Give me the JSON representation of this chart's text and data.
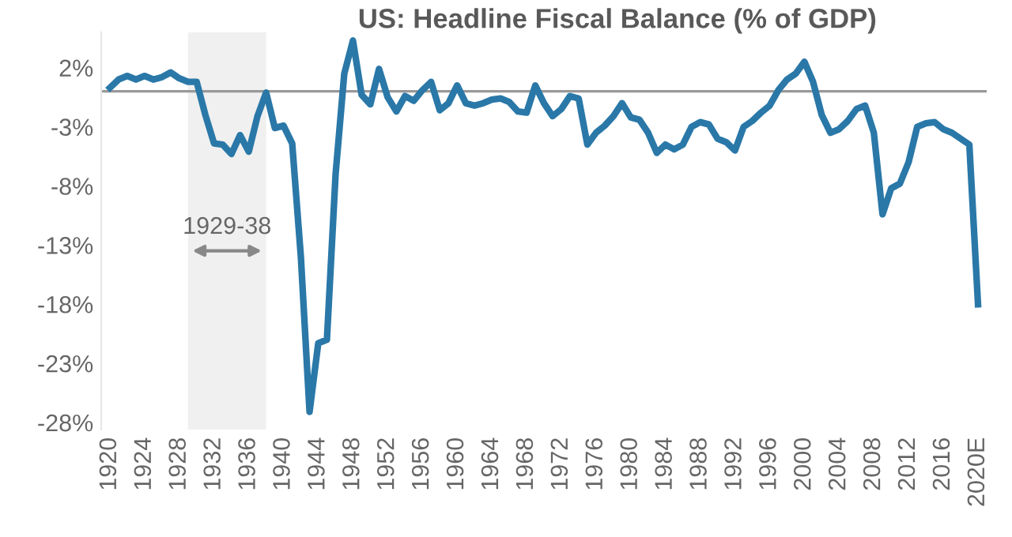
{
  "chart_data": {
    "type": "line",
    "title": "US: Headline Fiscal Balance (% of GDP)",
    "x": [
      1920,
      1921,
      1922,
      1923,
      1924,
      1925,
      1926,
      1927,
      1928,
      1929,
      1930,
      1931,
      1932,
      1933,
      1934,
      1935,
      1936,
      1937,
      1938,
      1939,
      1940,
      1941,
      1942,
      1943,
      1944,
      1945,
      1946,
      1947,
      1948,
      1949,
      1950,
      1951,
      1952,
      1953,
      1954,
      1955,
      1956,
      1957,
      1958,
      1959,
      1960,
      1961,
      1962,
      1963,
      1964,
      1965,
      1966,
      1967,
      1968,
      1969,
      1970,
      1971,
      1972,
      1973,
      1974,
      1975,
      1976,
      1977,
      1978,
      1979,
      1980,
      1981,
      1982,
      1983,
      1984,
      1985,
      1986,
      1987,
      1988,
      1989,
      1990,
      1991,
      1992,
      1993,
      1994,
      1995,
      1996,
      1997,
      1998,
      1999,
      2000,
      2001,
      2002,
      2003,
      2004,
      2005,
      2006,
      2007,
      2008,
      2009,
      2010,
      2011,
      2012,
      2013,
      2014,
      2015,
      2016,
      2017,
      2018,
      2019,
      2020
    ],
    "series": [
      {
        "color": "#2a78a8",
        "values": [
          0.3,
          1.0,
          1.3,
          1.0,
          1.3,
          1.0,
          1.2,
          1.6,
          1.1,
          0.8,
          0.8,
          -2.0,
          -4.4,
          -4.5,
          -5.3,
          -3.7,
          -5.1,
          -2.1,
          -0.1,
          -3.1,
          -2.9,
          -4.4,
          -14.0,
          -27.1,
          -21.3,
          -21.0,
          -7.0,
          1.5,
          4.3,
          -0.3,
          -1.1,
          1.9,
          -0.5,
          -1.7,
          -0.4,
          -0.8,
          0.1,
          0.8,
          -1.6,
          -1.0,
          0.5,
          -1.0,
          -1.2,
          -1.0,
          -0.7,
          -0.6,
          -0.9,
          -1.7,
          -1.8,
          0.5,
          -1.0,
          -2.1,
          -1.5,
          -0.4,
          -0.6,
          -4.5,
          -3.5,
          -2.9,
          -2.1,
          -1.0,
          -2.2,
          -2.4,
          -3.5,
          -5.2,
          -4.5,
          -4.9,
          -4.5,
          -3.0,
          -2.6,
          -2.8,
          -4.0,
          -4.3,
          -5.0,
          -3.0,
          -2.5,
          -1.8,
          -1.2,
          0.1,
          1.0,
          1.5,
          2.5,
          0.8,
          -2.0,
          -3.5,
          -3.2,
          -2.5,
          -1.5,
          -1.2,
          -3.5,
          -10.4,
          -8.2,
          -7.8,
          -6.0,
          -3.0,
          -2.7,
          -2.6,
          -3.2,
          -3.5,
          -4.0,
          -4.5,
          -18.0
        ]
      }
    ],
    "xlim": [
      1919,
      2021
    ],
    "xticks": [
      1920,
      1924,
      1928,
      1932,
      1936,
      1940,
      1944,
      1948,
      1952,
      1956,
      1960,
      1964,
      1968,
      1972,
      1976,
      1980,
      1984,
      1988,
      1992,
      1996,
      2000,
      2004,
      2008,
      2012,
      2016,
      {
        "value": 2020,
        "label": "2020E"
      }
    ],
    "ylim": [
      -28.6,
      5
    ],
    "yticks": [
      {
        "value": 2,
        "label": "2%"
      },
      {
        "value": -3,
        "label": "-3%"
      },
      {
        "value": -8,
        "label": "-8%"
      },
      {
        "value": -13,
        "label": "-13%"
      },
      {
        "value": -18,
        "label": "-18%"
      },
      {
        "value": -23,
        "label": "-23%"
      },
      {
        "value": -28,
        "label": "-28%"
      }
    ],
    "ref_lines": [
      {
        "axis": "y",
        "value": 0,
        "color": "#999999"
      }
    ],
    "bands": [
      {
        "axis": "x",
        "from": 1929,
        "to": 1938,
        "label": "1929-38",
        "color": "#f0f0f0"
      }
    ],
    "grid": false,
    "legend": false,
    "marker": "none",
    "line_style": "solid"
  }
}
